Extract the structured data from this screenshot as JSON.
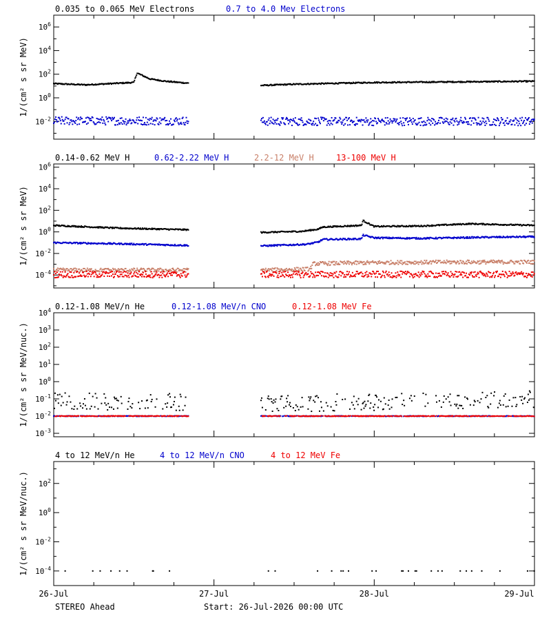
{
  "chart_data": [
    {
      "type": "scatter",
      "id": "electrons",
      "ylabel": "1/(cm² s sr MeV)",
      "ylog": true,
      "ylim_exp": [
        -3.5,
        7
      ],
      "yticks_exp": [
        -2,
        0,
        2,
        4,
        6
      ],
      "xlim": [
        0,
        3
      ],
      "series": [
        {
          "name": "0.035 to 0.065 MeV Electrons",
          "color": "#000000",
          "spread": 0.05,
          "scatter": 0,
          "x": [
            0.0,
            0.2,
            0.35,
            0.5,
            0.52,
            0.6,
            0.7,
            0.83,
            1.3,
            1.5,
            2.0,
            2.5,
            3.0
          ],
          "y": [
            1.2,
            1.1,
            1.2,
            1.3,
            2.1,
            1.6,
            1.4,
            1.25,
            1.05,
            1.15,
            1.3,
            1.35,
            1.4
          ]
        },
        {
          "name": "0.7 to 4.0 Mev Electrons",
          "color": "#0000cc",
          "spread": 0.35,
          "scatter": 0,
          "x": [
            0.0,
            0.83,
            1.3,
            3.0
          ],
          "y": [
            -1.95,
            -1.95,
            -2.0,
            -2.0
          ]
        }
      ],
      "gaps": [
        [
          0.84,
          1.29
        ]
      ]
    },
    {
      "type": "scatter",
      "id": "protons",
      "ylabel": "1/(cm² s sr MeV)",
      "ylog": true,
      "ylim_exp": [
        -5.2,
        6.3
      ],
      "yticks_exp": [
        -4,
        -2,
        0,
        2,
        4,
        6
      ],
      "xlim": [
        0,
        3
      ],
      "series": [
        {
          "name": "0.14-0.62 MeV H",
          "color": "#000000",
          "spread": 0.06,
          "scatter": 0,
          "x": [
            0.0,
            0.4,
            0.83,
            1.3,
            1.55,
            1.65,
            1.68,
            1.92,
            1.93,
            2.0,
            2.3,
            2.6,
            3.0
          ],
          "y": [
            0.6,
            0.35,
            0.2,
            -0.05,
            0.05,
            0.25,
            0.45,
            0.6,
            1.05,
            0.5,
            0.55,
            0.75,
            0.6
          ]
        },
        {
          "name": "0.62-2.22 MeV H",
          "color": "#0000cc",
          "spread": 0.07,
          "scatter": 0,
          "x": [
            0.0,
            0.4,
            0.83,
            1.3,
            1.58,
            1.65,
            1.68,
            1.92,
            1.93,
            2.0,
            2.3,
            2.7,
            3.0
          ],
          "y": [
            -1.0,
            -1.1,
            -1.25,
            -1.3,
            -1.15,
            -0.95,
            -0.7,
            -0.65,
            -0.3,
            -0.55,
            -0.6,
            -0.5,
            -0.45
          ]
        },
        {
          "name": "2.2-12 MeV H",
          "color": "#c87f68",
          "spread": 0.18,
          "scatter": 0,
          "x": [
            0.0,
            0.83,
            1.3,
            1.6,
            1.62,
            2.0,
            2.5,
            3.0
          ],
          "y": [
            -3.55,
            -3.55,
            -3.55,
            -3.45,
            -2.95,
            -2.85,
            -2.8,
            -2.8
          ]
        },
        {
          "name": "13-100 MeV H",
          "color": "#ee0000",
          "spread": 0.3,
          "scatter": 0,
          "x": [
            0.0,
            0.83,
            1.3,
            3.0
          ],
          "y": [
            -3.95,
            -3.95,
            -3.95,
            -3.95
          ]
        }
      ],
      "gaps": [
        [
          0.84,
          1.29
        ]
      ]
    },
    {
      "type": "scatter",
      "id": "heavy-low",
      "ylabel": "1/(cm² s sr MeV/nuc.)",
      "ylog": true,
      "ylim_exp": [
        -3.2,
        4
      ],
      "yticks_exp": [
        -3,
        -2,
        -1,
        0,
        1,
        2,
        3,
        4
      ],
      "xlim": [
        0,
        3
      ],
      "series": [
        {
          "name": "0.12-1.08 MeV/n He",
          "color": "#000000",
          "spread": 0.5,
          "scatter": 0.55,
          "x": [
            0.0,
            0.83,
            1.3,
            3.0
          ],
          "y": [
            -1.1,
            -1.2,
            -1.3,
            -1.0
          ]
        },
        {
          "name": "0.12-1.08 MeV/n CNO",
          "color": "#0000cc",
          "spread": 0.02,
          "scatter": 0.3,
          "x": [
            0.0,
            0.83,
            1.3,
            3.0
          ],
          "y": [
            -2.0,
            -2.0,
            -2.0,
            -2.0
          ]
        },
        {
          "name": "0.12-1.08 MeV Fe",
          "color": "#ee0000",
          "spread": 0.02,
          "scatter": 0.25,
          "x": [
            0.0,
            0.83,
            1.3,
            3.0
          ],
          "y": [
            -2.0,
            -2.0,
            -2.0,
            -2.0
          ]
        }
      ],
      "gaps": [
        [
          0.84,
          1.29
        ]
      ]
    },
    {
      "type": "scatter",
      "id": "heavy-high",
      "ylabel": "1/(cm² s sr MeV/nuc.)",
      "ylog": true,
      "ylim_exp": [
        -5,
        3.5
      ],
      "yticks_exp": [
        -4,
        -2,
        0,
        2
      ],
      "xlim": [
        0,
        3
      ],
      "series": [
        {
          "name": "4 to 12 MeV/n He",
          "color": "#000000",
          "spread": 0.0,
          "scatter": 0.93,
          "x": [
            0.0,
            0.83,
            1.3,
            3.0
          ],
          "y": [
            -4.0,
            -4.0,
            -4.0,
            -4.0
          ]
        },
        {
          "name": "4 to 12 MeV/n CNO",
          "color": "#0000cc",
          "spread": 0,
          "scatter": 1,
          "x": [],
          "y": []
        },
        {
          "name": "4 to 12 MeV Fe",
          "color": "#ee0000",
          "spread": 0,
          "scatter": 1,
          "x": [],
          "y": []
        }
      ],
      "gaps": [
        [
          0.84,
          1.29
        ]
      ]
    }
  ],
  "x_axis": {
    "tick_labels": [
      "26-Jul",
      "27-Jul",
      "28-Jul",
      "29-Jul"
    ]
  },
  "footer": {
    "spacecraft": "STEREO Ahead",
    "start": "Start: 26-Jul-2026 00:00 UTC"
  }
}
